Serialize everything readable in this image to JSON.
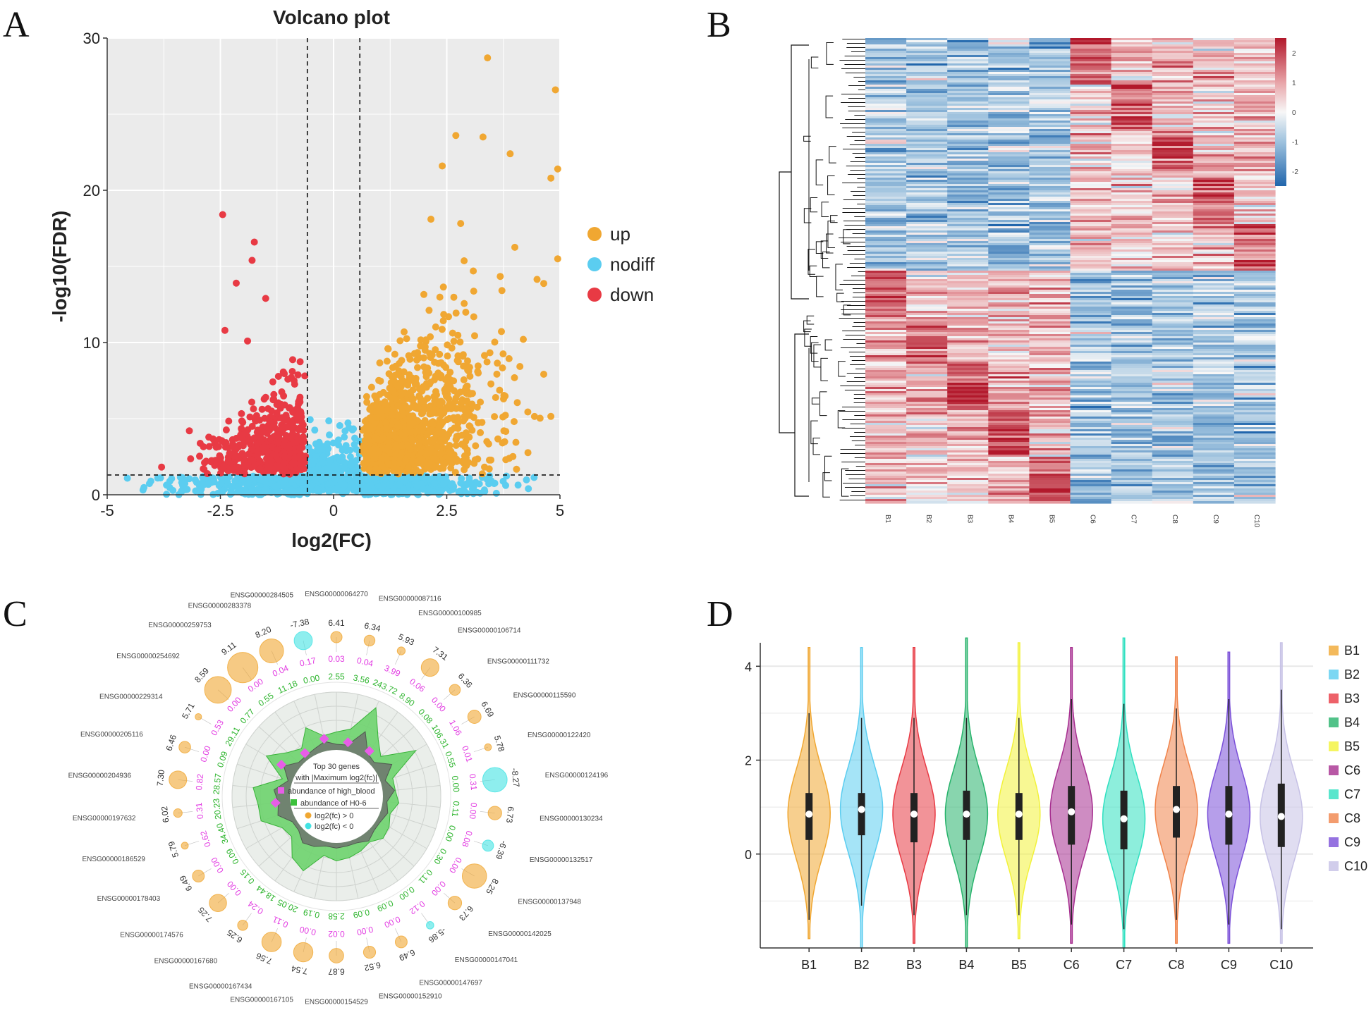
{
  "panel_letters": [
    "A",
    "B",
    "C",
    "D"
  ],
  "chart_data": [
    {
      "panel": "A",
      "type": "scatter",
      "title": "Volcano plot",
      "xlabel": "log2(FC)",
      "ylabel": "-log10(FDR)",
      "xlim": [
        -5,
        5
      ],
      "ylim": [
        0,
        30
      ],
      "xticks": [
        "-5",
        "-2.5",
        "0",
        "2.5",
        "5"
      ],
      "yticks": [
        "0",
        "10",
        "20",
        "30"
      ],
      "thresholds": {
        "log2fc": [
          -0.58,
          0.58
        ],
        "neglog10fdr": 1.3
      },
      "legend": [
        {
          "name": "up",
          "color": "#f0a732"
        },
        {
          "name": "nodiff",
          "color": "#5bcdf0"
        },
        {
          "name": "down",
          "color": "#e83a44"
        }
      ],
      "highlight_points": {
        "up": [
          [
            3.4,
            28.7
          ],
          [
            4.9,
            26.6
          ],
          [
            4.95,
            21.4
          ],
          [
            2.7,
            23.6
          ],
          [
            3.3,
            23.5
          ],
          [
            2.4,
            21.6
          ],
          [
            3.9,
            22.4
          ],
          [
            4.8,
            20.8
          ],
          [
            2.15,
            18.1
          ],
          [
            4.95,
            15.5
          ]
        ],
        "down": [
          [
            -2.45,
            18.4
          ],
          [
            -1.75,
            16.6
          ],
          [
            -1.8,
            15.4
          ],
          [
            -2.15,
            13.9
          ],
          [
            -1.5,
            12.9
          ],
          [
            -2.4,
            10.8
          ],
          [
            -1.9,
            10.1
          ]
        ]
      }
    },
    {
      "panel": "B",
      "type": "heatmap",
      "columns": [
        "B1",
        "B2",
        "B3",
        "B4",
        "B5",
        "C6",
        "C7",
        "C8",
        "C9",
        "C10"
      ],
      "colorbar_ticks": [
        "2",
        "1",
        "0",
        "-1",
        "-2"
      ],
      "colorbar_range": [
        -2.5,
        2.5
      ]
    },
    {
      "panel": "C",
      "type": "radar",
      "center_title": "Top 30 genes",
      "center_subtitle": "with |Maximum log2(fc)|",
      "legend": [
        {
          "name": "abundance of high_blood",
          "color": "#e85de8"
        },
        {
          "name": "abundance of H0-6",
          "color": "#3cc13c"
        },
        {
          "name": "log2(fc) > 0",
          "color": "#f0a732"
        },
        {
          "name": "log2(fc) < 0",
          "color": "#42e3e3"
        }
      ],
      "genes": [
        {
          "id": "ENSG00000064270",
          "log2fc": "6.41",
          "ab_high": "0.03",
          "ab_h0": "2.55"
        },
        {
          "id": "ENSG00000087116",
          "log2fc": "6.34",
          "ab_high": "0.04",
          "ab_h0": "3.56"
        },
        {
          "id": "ENSG00000100985",
          "log2fc": "5.93",
          "ab_high": "3.99",
          "ab_h0": "243.72"
        },
        {
          "id": "ENSG00000106714",
          "log2fc": "7.31",
          "ab_high": "0.06",
          "ab_h0": "8.90"
        },
        {
          "id": "ENSG00000111732",
          "log2fc": "6.36",
          "ab_high": "0.00",
          "ab_h0": "0.08"
        },
        {
          "id": "ENSG00000115590",
          "log2fc": "6.69",
          "ab_high": "1.06",
          "ab_h0": "106.31"
        },
        {
          "id": "ENSG00000122420",
          "log2fc": "5.78",
          "ab_high": "0.01",
          "ab_h0": "0.55"
        },
        {
          "id": "ENSG00000124196",
          "log2fc": "-8.27",
          "ab_high": "0.31",
          "ab_h0": "0.00"
        },
        {
          "id": "ENSG00000130234",
          "log2fc": "6.73",
          "ab_high": "0.00",
          "ab_h0": "0.11"
        },
        {
          "id": "ENSG00000132517",
          "log2fc": "-6.39",
          "ab_high": "0.08",
          "ab_h0": "0.00"
        },
        {
          "id": "ENSG00000137948",
          "log2fc": "8.25",
          "ab_high": "0.00",
          "ab_h0": "0.30"
        },
        {
          "id": "ENSG00000142025",
          "log2fc": "6.73",
          "ab_high": "0.00",
          "ab_h0": "0.11"
        },
        {
          "id": "ENSG00000147041",
          "log2fc": "-5.86",
          "ab_high": "0.12",
          "ab_h0": "0.00"
        },
        {
          "id": "ENSG00000147697",
          "log2fc": "6.49",
          "ab_high": "0.00",
          "ab_h0": "0.09"
        },
        {
          "id": "ENSG00000152910",
          "log2fc": "6.52",
          "ab_high": "0.00",
          "ab_h0": "0.09"
        },
        {
          "id": "ENSG00000154529",
          "log2fc": "6.87",
          "ab_high": "0.02",
          "ab_h0": "2.58"
        },
        {
          "id": "ENSG00000167105",
          "log2fc": "7.54",
          "ab_high": "0.00",
          "ab_h0": "0.19"
        },
        {
          "id": "ENSG00000167434",
          "log2fc": "7.56",
          "ab_high": "0.11",
          "ab_h0": "20.05"
        },
        {
          "id": "ENSG00000167680",
          "log2fc": "6.25",
          "ab_high": "0.24",
          "ab_h0": "18.44"
        },
        {
          "id": "ENSG00000174576",
          "log2fc": "7.25",
          "ab_high": "0.00",
          "ab_h0": "0.15"
        },
        {
          "id": "ENSG00000178403",
          "log2fc": "6.49",
          "ab_high": "0.00",
          "ab_h0": "0.09"
        },
        {
          "id": "ENSG00000186529",
          "log2fc": "5.79",
          "ab_high": "0.62",
          "ab_h0": "34.40"
        },
        {
          "id": "ENSG00000197632",
          "log2fc": "6.02",
          "ab_high": "0.31",
          "ab_h0": "20.23"
        },
        {
          "id": "ENSG00000204936",
          "log2fc": "7.30",
          "ab_high": "0.82",
          "ab_h0": "28.57"
        },
        {
          "id": "ENSG00000205116",
          "log2fc": "6.46",
          "ab_high": "0.00",
          "ab_h0": "0.09"
        },
        {
          "id": "ENSG00000229314",
          "log2fc": "5.71",
          "ab_high": "0.53",
          "ab_h0": "29.11"
        },
        {
          "id": "ENSG00000254692",
          "log2fc": "8.59",
          "ab_high": "0.00",
          "ab_h0": "0.77"
        },
        {
          "id": "ENSG00000259753",
          "log2fc": "9.11",
          "ab_high": "0.00",
          "ab_h0": "0.55"
        },
        {
          "id": "ENSG00000283378",
          "log2fc": "8.20",
          "ab_high": "0.04",
          "ab_h0": "11.18"
        },
        {
          "id": "ENSG00000284505",
          "log2fc": "-7.38",
          "ab_high": "0.17",
          "ab_h0": "0.00"
        }
      ]
    },
    {
      "panel": "D",
      "type": "violin",
      "categories": [
        "B1",
        "B2",
        "B3",
        "B4",
        "B5",
        "C6",
        "C7",
        "C8",
        "C9",
        "C10"
      ],
      "colors": [
        "#f0a732",
        "#5bcdf0",
        "#e83a44",
        "#27b36b",
        "#f2f23a",
        "#a62e8f",
        "#2fe0c0",
        "#f0834a",
        "#7a4fd8",
        "#c6c1e6"
      ],
      "ylim": [
        -2,
        4.5
      ],
      "yticks": [
        "0",
        "2",
        "4"
      ],
      "stats": [
        {
          "median": 0.85,
          "q1": 0.3,
          "q3": 1.3,
          "wlo": -1.4,
          "whi": 3.0,
          "min": -1.8,
          "max": 4.4
        },
        {
          "median": 0.95,
          "q1": 0.4,
          "q3": 1.3,
          "wlo": -1.1,
          "whi": 2.9,
          "min": -2.0,
          "max": 4.4
        },
        {
          "median": 0.85,
          "q1": 0.25,
          "q3": 1.3,
          "wlo": -1.3,
          "whi": 2.9,
          "min": -1.9,
          "max": 4.4
        },
        {
          "median": 0.85,
          "q1": 0.3,
          "q3": 1.35,
          "wlo": -1.3,
          "whi": 2.9,
          "min": -2.0,
          "max": 4.6
        },
        {
          "median": 0.85,
          "q1": 0.3,
          "q3": 1.3,
          "wlo": -1.3,
          "whi": 2.9,
          "min": -1.8,
          "max": 4.5
        },
        {
          "median": 0.9,
          "q1": 0.2,
          "q3": 1.45,
          "wlo": -1.5,
          "whi": 3.3,
          "min": -1.9,
          "max": 4.4
        },
        {
          "median": 0.75,
          "q1": 0.1,
          "q3": 1.35,
          "wlo": -1.6,
          "whi": 3.2,
          "min": -2.0,
          "max": 4.6
        },
        {
          "median": 0.95,
          "q1": 0.35,
          "q3": 1.45,
          "wlo": -1.4,
          "whi": 3.1,
          "min": -1.9,
          "max": 4.2
        },
        {
          "median": 0.85,
          "q1": 0.2,
          "q3": 1.45,
          "wlo": -1.5,
          "whi": 3.3,
          "min": -1.9,
          "max": 4.3
        },
        {
          "median": 0.8,
          "q1": 0.15,
          "q3": 1.5,
          "wlo": -1.6,
          "whi": 3.5,
          "min": -1.9,
          "max": 4.5
        }
      ]
    }
  ]
}
